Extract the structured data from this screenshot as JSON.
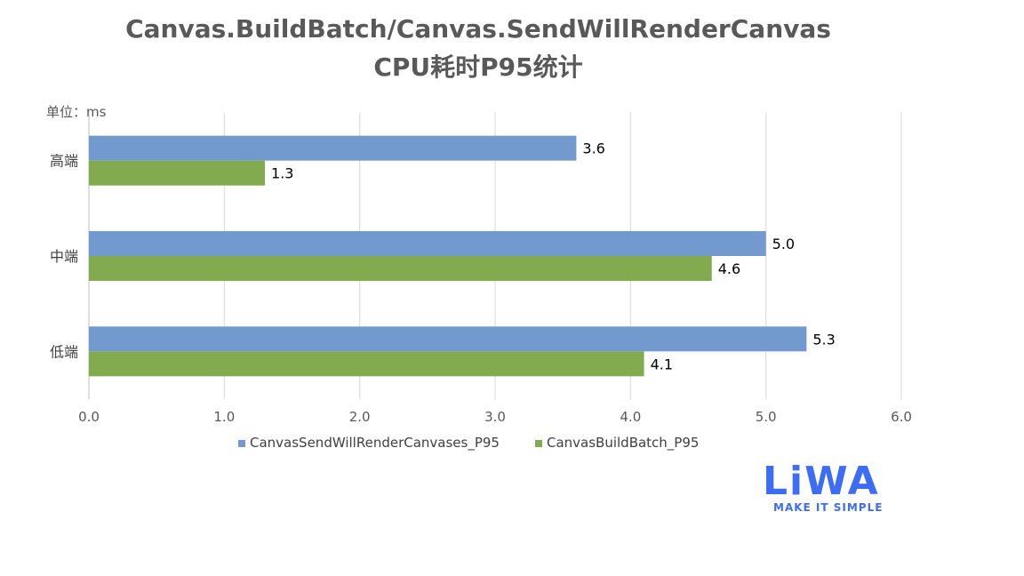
{
  "chart_data": {
    "type": "bar",
    "orientation": "horizontal",
    "title": "Canvas.BuildBatch/Canvas.SendWillRenderCanvas",
    "subtitle": "CPU耗时P95统计",
    "unit_label": "单位：ms",
    "categories": [
      "高端",
      "中端",
      "低端"
    ],
    "series": [
      {
        "name": "CanvasSendWillRenderCanvases_P95",
        "color": "#729acf",
        "values": [
          3.6,
          5.0,
          5.3
        ]
      },
      {
        "name": "CanvasBuildBatch_P95",
        "color": "#82ab4f",
        "values": [
          1.3,
          4.6,
          4.1
        ]
      }
    ],
    "xlim": [
      0,
      6
    ],
    "xticks": [
      "0.0",
      "1.0",
      "2.0",
      "3.0",
      "4.0",
      "5.0",
      "6.0"
    ],
    "grid": true,
    "legend": "bottom"
  },
  "logo": {
    "text": "LiWA",
    "tagline": "MAKE IT SIMPLE"
  }
}
